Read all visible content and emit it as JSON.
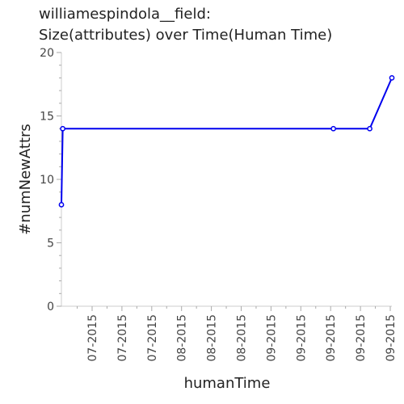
{
  "title_line1": "williamespindola__field:",
  "title_line2": "Size(attributes) over Time(Human Time)",
  "chart_data": {
    "type": "line",
    "xlabel": "humanTime",
    "ylabel": "#numNewAttrs",
    "ylim": [
      0,
      20
    ],
    "y_ticks": [
      0,
      5,
      10,
      15,
      20
    ],
    "x_tick_labels": [
      "07-2015",
      "07-2015",
      "07-2015",
      "08-2015",
      "08-2015",
      "08-2015",
      "09-2015",
      "09-2015",
      "09-2015",
      "09-2015",
      "09-2015"
    ],
    "grid": false,
    "series": [
      {
        "color": "#0000ee",
        "x": [
          0.0,
          0.004,
          0.823,
          0.933,
          1.0
        ],
        "values": [
          8,
          14,
          14,
          14,
          18
        ]
      }
    ]
  }
}
